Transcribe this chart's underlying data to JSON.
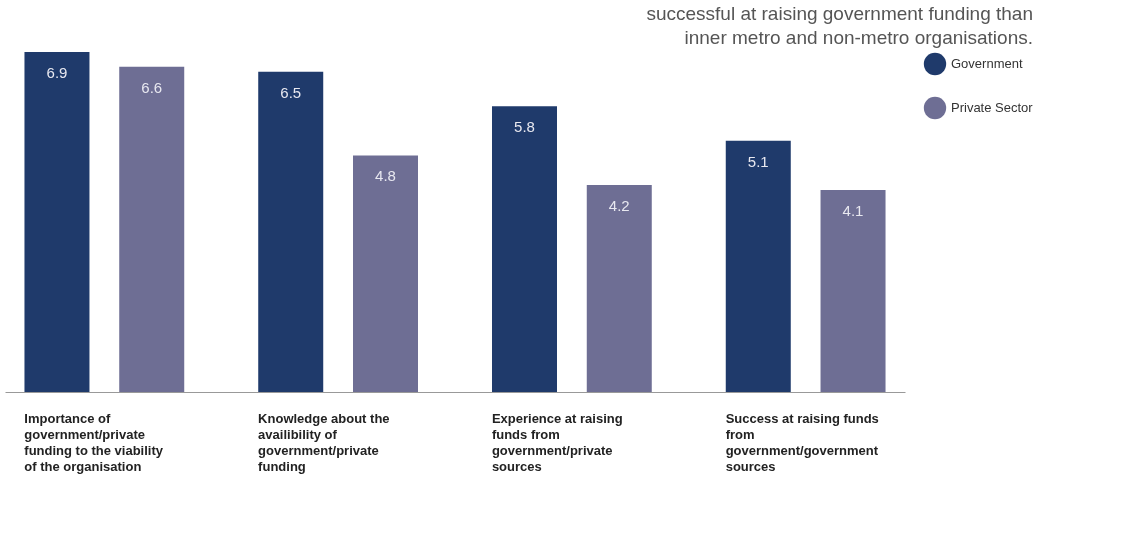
{
  "chart_data": {
    "type": "bar",
    "annotations": [
      "successful at raising government funding than inner metro and non-metro organisations."
    ],
    "categories": [
      "Importance of government/private funding to the viability of the organisation",
      "Knowledge about the availibility of government/private funding",
      "Experience at raising funds from government/private sources",
      "Success at raising funds from government/government sources"
    ],
    "series": [
      {
        "name": "Government",
        "color": "#1f3a6b",
        "values": [
          6.9,
          6.5,
          5.8,
          5.1
        ]
      },
      {
        "name": "Private Sector",
        "color": "#6e6e94",
        "values": [
          6.6,
          4.8,
          4.2,
          4.1
        ]
      }
    ],
    "data_labels": true,
    "legend": "right",
    "grid": false
  }
}
